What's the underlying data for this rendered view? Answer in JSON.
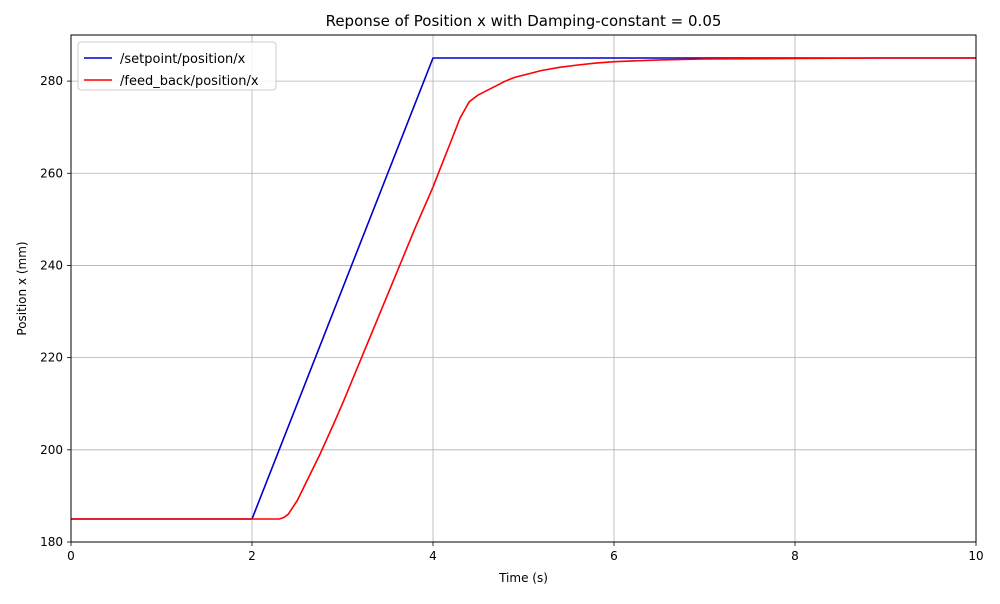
{
  "chart_data": {
    "type": "line",
    "title": "Reponse of Position x with Damping-constant = 0.05",
    "xlabel": "Time (s)",
    "ylabel": "Position x (mm)",
    "xlim": [
      0,
      10
    ],
    "ylim": [
      180,
      290
    ],
    "xticks": [
      0,
      2,
      4,
      6,
      8,
      10
    ],
    "yticks": [
      180,
      200,
      220,
      240,
      260,
      280
    ],
    "grid": true,
    "legend_position": "top-left",
    "series": [
      {
        "name": "/setpoint/position/x",
        "color": "#0000cc",
        "x": [
          0,
          2.0,
          4.0,
          10
        ],
        "y": [
          185,
          185,
          285,
          285
        ]
      },
      {
        "name": "/feed_back/position/x",
        "color": "#ff0000",
        "x": [
          0,
          2.3,
          2.35,
          2.4,
          2.5,
          2.6,
          2.75,
          2.9,
          3.0,
          3.2,
          3.4,
          3.6,
          3.8,
          4.0,
          4.1,
          4.2,
          4.3,
          4.4,
          4.5,
          4.6,
          4.7,
          4.8,
          4.9,
          5.0,
          5.2,
          5.4,
          5.6,
          5.8,
          6.0,
          6.5,
          7.0,
          8.0,
          9.0,
          10.0
        ],
        "y": [
          185,
          185,
          185.3,
          186,
          189,
          193,
          199,
          205.5,
          210,
          219.5,
          229,
          238.5,
          248,
          257,
          262,
          267,
          272,
          275.5,
          277,
          278,
          279,
          280,
          280.8,
          281.3,
          282.3,
          283,
          283.5,
          283.9,
          284.2,
          284.6,
          284.8,
          284.9,
          285,
          285
        ]
      }
    ]
  }
}
